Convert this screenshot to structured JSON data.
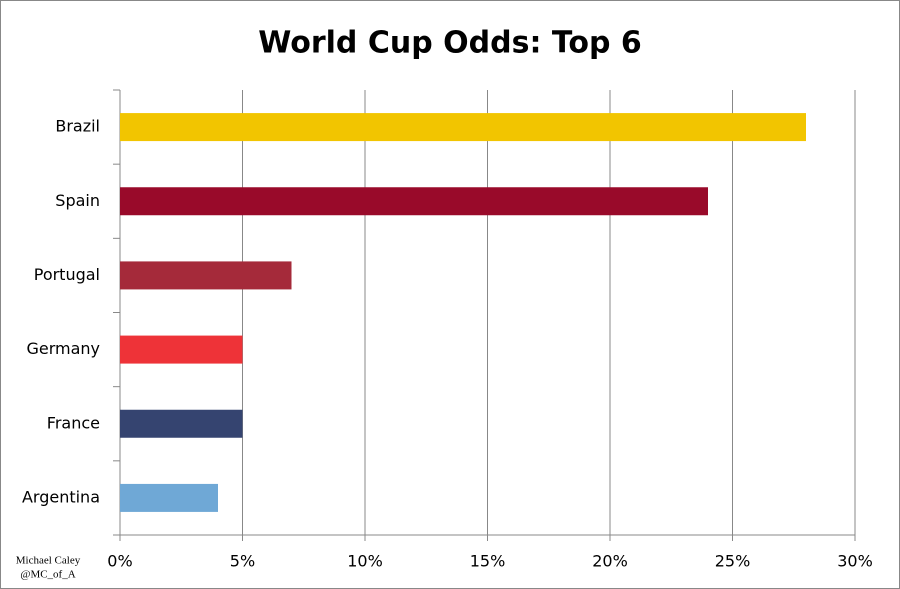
{
  "chart_data": {
    "type": "hbar",
    "title": "World Cup Odds: Top 6",
    "categories": [
      "Brazil",
      "Spain",
      "Portugal",
      "Germany",
      "France",
      "Argentina"
    ],
    "values": [
      28,
      24,
      7,
      5,
      5,
      4
    ],
    "colors": [
      "#f2c500",
      "#990a2a",
      "#a52a3a",
      "#ee3338",
      "#354470",
      "#6fa8d6"
    ],
    "xlim": [
      0,
      30
    ],
    "xticks": [
      {
        "value": 0,
        "label": "0%"
      },
      {
        "value": 5,
        "label": "5%"
      },
      {
        "value": 10,
        "label": "10%"
      },
      {
        "value": 15,
        "label": "15%"
      },
      {
        "value": 20,
        "label": "20%"
      },
      {
        "value": 25,
        "label": "25%"
      },
      {
        "value": 30,
        "label": "30%"
      }
    ],
    "grid": true,
    "annotations": [
      "Michael Caley",
      "@MC_of_A"
    ]
  }
}
